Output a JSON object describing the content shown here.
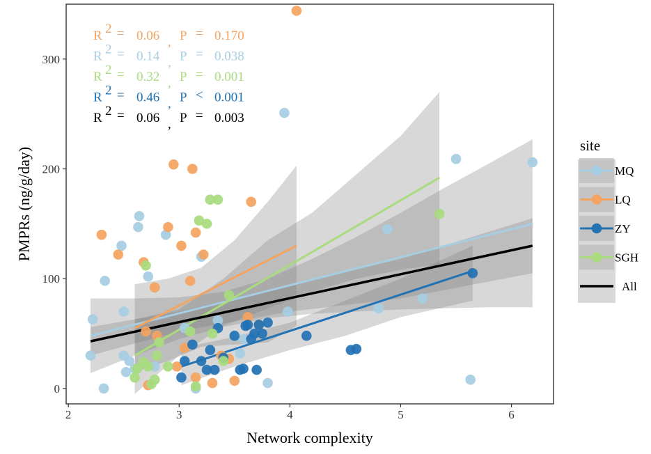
{
  "chart_data": {
    "type": "scatter",
    "xlabel": "Network complexity",
    "ylabel": "PMPRs (ng/g/day)",
    "xlim": [
      1.98,
      6.38
    ],
    "ylim": [
      -14,
      350
    ],
    "xticks": [
      2,
      3,
      4,
      5,
      6
    ],
    "yticks": [
      0,
      100,
      200,
      300
    ],
    "grid": false,
    "legend": {
      "title": "site",
      "placement": "right",
      "entries": [
        {
          "label": "MQ",
          "color": "#A6CEE3",
          "type": "point+line"
        },
        {
          "label": "LQ",
          "color": "#F4A460",
          "type": "point+line"
        },
        {
          "label": "ZY",
          "color": "#2272B4",
          "type": "point+line"
        },
        {
          "label": "SGH",
          "color": "#A8DC7E",
          "type": "point+line"
        },
        {
          "label": "All",
          "color": "#000000",
          "type": "line"
        }
      ]
    },
    "annotations": [
      {
        "r2": "0.06",
        "op": "=",
        "p": "0.170",
        "color": "#F4A460"
      },
      {
        "r2": "0.14",
        "op": "=",
        "p": "0.038",
        "color": "#A6CEE3"
      },
      {
        "r2": "0.32",
        "op": "=",
        "p": "0.001",
        "color": "#A8DC7E"
      },
      {
        "r2": "0.46",
        "op": "<",
        "p": "0.001",
        "color": "#2272B4"
      },
      {
        "r2": "0.06",
        "op": "=",
        "p": "0.003",
        "color": "#000000"
      }
    ],
    "series": [
      {
        "name": "MQ",
        "color": "#A6CEE3",
        "points": [
          [
            2.2,
            30
          ],
          [
            2.22,
            63
          ],
          [
            2.33,
            98
          ],
          [
            2.32,
            0
          ],
          [
            2.48,
            130
          ],
          [
            2.5,
            70
          ],
          [
            2.5,
            30
          ],
          [
            2.52,
            15
          ],
          [
            2.55,
            25
          ],
          [
            2.6,
            18
          ],
          [
            2.63,
            147
          ],
          [
            2.64,
            157
          ],
          [
            2.72,
            102
          ],
          [
            2.78,
            20
          ],
          [
            2.88,
            140
          ],
          [
            3.05,
            55
          ],
          [
            3.15,
            0
          ],
          [
            3.2,
            120
          ],
          [
            3.35,
            62
          ],
          [
            3.55,
            32
          ],
          [
            3.58,
            45
          ],
          [
            3.8,
            5
          ],
          [
            3.95,
            251
          ],
          [
            3.98,
            70
          ],
          [
            4.88,
            145
          ],
          [
            4.8,
            73
          ],
          [
            5.2,
            82
          ],
          [
            5.5,
            209
          ],
          [
            5.63,
            8
          ],
          [
            6.19,
            206
          ]
        ],
        "fit": {
          "x": [
            2.2,
            6.19
          ],
          "y": [
            48,
            150
          ]
        },
        "ci": {
          "x": [
            2.2,
            2.6,
            3.0,
            3.4,
            3.8,
            4.2,
            4.6,
            5.0,
            5.4,
            5.8,
            6.19
          ],
          "upper": [
            82,
            82,
            83,
            88,
            100,
            118,
            138,
            160,
            183,
            205,
            227
          ],
          "lower": [
            14,
            30,
            45,
            56,
            64,
            68,
            70,
            72,
            73,
            74,
            74
          ]
        }
      },
      {
        "name": "LQ",
        "color": "#F4A460",
        "points": [
          [
            2.3,
            140
          ],
          [
            2.45,
            122
          ],
          [
            2.68,
            115
          ],
          [
            2.7,
            52
          ],
          [
            2.72,
            3
          ],
          [
            2.78,
            92
          ],
          [
            2.8,
            48
          ],
          [
            2.9,
            147
          ],
          [
            2.95,
            204
          ],
          [
            2.98,
            20
          ],
          [
            3.02,
            130
          ],
          [
            3.05,
            37
          ],
          [
            3.1,
            98
          ],
          [
            3.12,
            200
          ],
          [
            3.15,
            142
          ],
          [
            3.15,
            10
          ],
          [
            3.22,
            122
          ],
          [
            3.3,
            5
          ],
          [
            3.38,
            30
          ],
          [
            3.45,
            27
          ],
          [
            3.5,
            7
          ],
          [
            3.62,
            65
          ],
          [
            3.65,
            170
          ],
          [
            3.72,
            58
          ],
          [
            4.06,
            344
          ]
        ],
        "fit": {
          "x": [
            2.6,
            4.06
          ],
          "y": [
            55,
            130
          ]
        },
        "ci": {
          "x": [
            2.6,
            2.9,
            3.2,
            3.5,
            3.8,
            4.06
          ],
          "upper": [
            95,
            100,
            110,
            135,
            170,
            203
          ],
          "lower": [
            15,
            25,
            38,
            40,
            42,
            57
          ]
        }
      },
      {
        "name": "ZY",
        "color": "#2272B4",
        "points": [
          [
            3.02,
            10
          ],
          [
            3.05,
            25
          ],
          [
            3.12,
            40
          ],
          [
            3.2,
            25
          ],
          [
            3.25,
            17
          ],
          [
            3.28,
            35
          ],
          [
            3.32,
            17
          ],
          [
            3.35,
            55
          ],
          [
            3.4,
            28
          ],
          [
            3.5,
            48
          ],
          [
            3.55,
            17
          ],
          [
            3.58,
            18
          ],
          [
            3.6,
            57
          ],
          [
            3.62,
            58
          ],
          [
            3.65,
            45
          ],
          [
            3.68,
            50
          ],
          [
            3.7,
            17
          ],
          [
            3.72,
            58
          ],
          [
            3.75,
            50
          ],
          [
            3.8,
            60
          ],
          [
            4.15,
            48
          ],
          [
            4.55,
            35
          ],
          [
            4.6,
            36
          ],
          [
            5.65,
            105
          ]
        ],
        "fit": {
          "x": [
            3.02,
            5.65
          ],
          "y": [
            20,
            107
          ]
        },
        "ci": {
          "x": [
            3.02,
            3.5,
            4.0,
            4.5,
            5.0,
            5.65
          ],
          "upper": [
            37,
            47,
            60,
            80,
            100,
            130
          ],
          "lower": [
            3,
            20,
            35,
            48,
            65,
            80
          ]
        }
      },
      {
        "name": "SGH",
        "color": "#A8DC7E",
        "points": [
          [
            2.6,
            10
          ],
          [
            2.62,
            18
          ],
          [
            2.68,
            24
          ],
          [
            2.7,
            112
          ],
          [
            2.72,
            20
          ],
          [
            2.75,
            4
          ],
          [
            2.78,
            8
          ],
          [
            2.8,
            30
          ],
          [
            2.82,
            42
          ],
          [
            2.9,
            20
          ],
          [
            3.1,
            52
          ],
          [
            3.15,
            2
          ],
          [
            3.18,
            153
          ],
          [
            3.25,
            150
          ],
          [
            3.28,
            172
          ],
          [
            3.3,
            50
          ],
          [
            3.35,
            172
          ],
          [
            3.4,
            25
          ],
          [
            3.45,
            85
          ],
          [
            5.35,
            159
          ]
        ],
        "fit": {
          "x": [
            2.6,
            5.35
          ],
          "y": [
            30,
            192
          ]
        },
        "ci": {
          "x": [
            2.6,
            3.0,
            3.4,
            3.8,
            4.2,
            4.6,
            5.0,
            5.35
          ],
          "upper": [
            63,
            72,
            100,
            135,
            160,
            195,
            230,
            270
          ],
          "lower": [
            -5,
            30,
            57,
            73,
            88,
            100,
            108,
            113
          ]
        }
      }
    ],
    "overall_fit": {
      "name": "All",
      "color": "#000000",
      "x": [
        2.2,
        6.19
      ],
      "y": [
        43,
        130
      ],
      "ci": {
        "x": [
          2.2,
          3.0,
          4.0,
          5.0,
          6.19
        ],
        "upper": [
          56,
          70,
          94,
          118,
          155
        ],
        "lower": [
          30,
          52,
          70,
          82,
          105
        ]
      }
    }
  }
}
